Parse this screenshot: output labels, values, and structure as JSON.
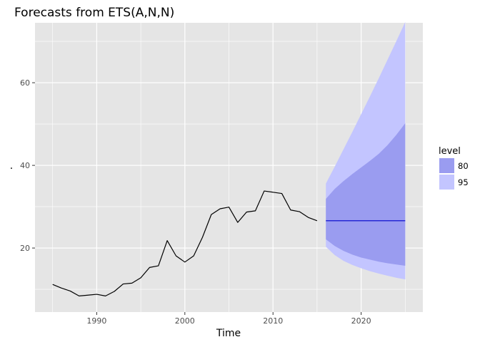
{
  "chart_data": {
    "type": "line",
    "title": "Forecasts from ETS(A,N,N)",
    "xlabel": "Time",
    "ylabel": ".",
    "xlim": [
      1983,
      2027
    ],
    "ylim": [
      4.5,
      74.5
    ],
    "x_ticks": [
      1990,
      2000,
      2010,
      2020
    ],
    "y_ticks": [
      20,
      40,
      60
    ],
    "grid": true,
    "legend_position": "right",
    "series": [
      {
        "kind": "observed",
        "x": [
          1985,
          1986,
          1987,
          1988,
          1989,
          1990,
          1991,
          1992,
          1993,
          1994,
          1995,
          1996,
          1997,
          1998,
          1999,
          2000,
          2001,
          2002,
          2003,
          2004,
          2005,
          2006,
          2007,
          2008,
          2009,
          2010,
          2011,
          2012,
          2013,
          2014,
          2015
        ],
        "values": [
          11.2,
          10.3,
          9.6,
          8.4,
          8.6,
          8.8,
          8.4,
          9.5,
          11.3,
          11.5,
          12.8,
          15.3,
          15.7,
          21.8,
          18.1,
          16.6,
          18.1,
          22.6,
          28.1,
          29.5,
          29.9,
          26.2,
          28.7,
          29.0,
          33.8,
          33.5,
          33.2,
          29.2,
          28.8,
          27.4,
          26.6
        ],
        "color": "#000000"
      },
      {
        "kind": "forecast",
        "x": [
          2016,
          2017,
          2018,
          2019,
          2020,
          2021,
          2022,
          2023,
          2024,
          2025
        ],
        "values": [
          26.6,
          26.6,
          26.6,
          26.6,
          26.6,
          26.6,
          26.6,
          26.6,
          26.6,
          26.6
        ],
        "color": "#0000cc"
      }
    ],
    "intervals": [
      {
        "name": "95",
        "color": "#c3c5ff",
        "lower": [
          20.3,
          18.3,
          16.9,
          15.9,
          15.1,
          14.4,
          13.8,
          13.3,
          12.8,
          12.4
        ],
        "upper": [
          35.6,
          39.7,
          43.9,
          48.1,
          52.4,
          56.7,
          61.1,
          65.6,
          70.1,
          74.7
        ]
      },
      {
        "name": "80",
        "color": "#9a9cf0",
        "lower": [
          22.1,
          20.5,
          19.3,
          18.4,
          17.7,
          17.2,
          16.7,
          16.3,
          16.0,
          15.7
        ],
        "upper": [
          31.9,
          34.3,
          36.2,
          37.9,
          39.5,
          41.1,
          42.8,
          44.9,
          47.4,
          50.2
        ]
      }
    ],
    "legend": {
      "title": "level",
      "items": [
        {
          "label": "80",
          "color": "#9a9cf0"
        },
        {
          "label": "95",
          "color": "#c3c5ff"
        }
      ]
    },
    "panel_color": "#e5e5e5",
    "grid_color": "#ffffff"
  }
}
